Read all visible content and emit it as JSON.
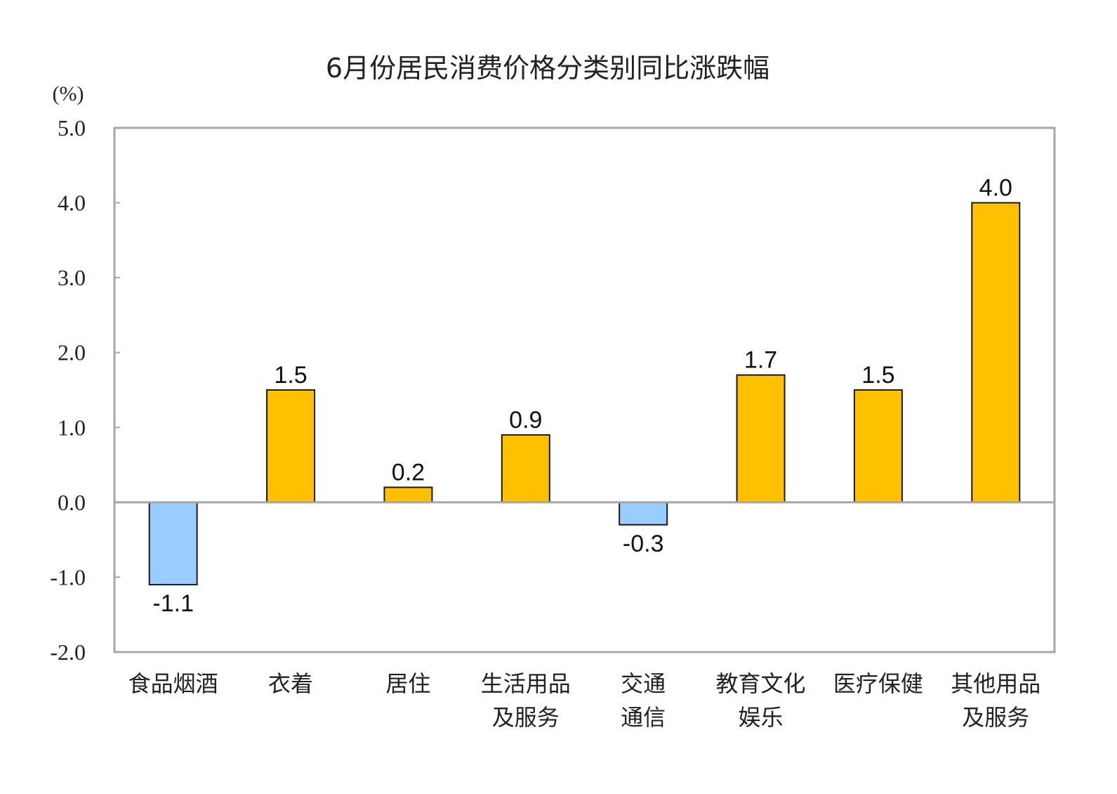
{
  "chart_data": {
    "type": "bar",
    "title": "6月份居民消费价格分类别同比涨跌幅",
    "ylabel": "(%)",
    "xlabel": "",
    "ylim": [
      -2.0,
      5.0
    ],
    "yticks": [
      "5.0",
      "4.0",
      "3.0",
      "2.0",
      "1.0",
      "0.0",
      "-1.0",
      "-2.0"
    ],
    "grid": false,
    "categories": [
      [
        "食品烟酒"
      ],
      [
        "衣着"
      ],
      [
        "居住"
      ],
      [
        "生活用品",
        "及服务"
      ],
      [
        "交通",
        "通信"
      ],
      [
        "教育文化",
        "娱乐"
      ],
      [
        "医疗保健"
      ],
      [
        "其他用品",
        "及服务"
      ]
    ],
    "values": [
      -1.1,
      1.5,
      0.2,
      0.9,
      -0.3,
      1.7,
      1.5,
      4.0
    ],
    "data_labels": [
      "-1.1",
      "1.5",
      "0.2",
      "0.9",
      "-0.3",
      "1.7",
      "1.5",
      "4.0"
    ],
    "colors": {
      "positive": "#FFC000",
      "negative": "#99CCFF",
      "bar_border": "#1a1a1a",
      "axis": "#a6a6a6"
    }
  }
}
